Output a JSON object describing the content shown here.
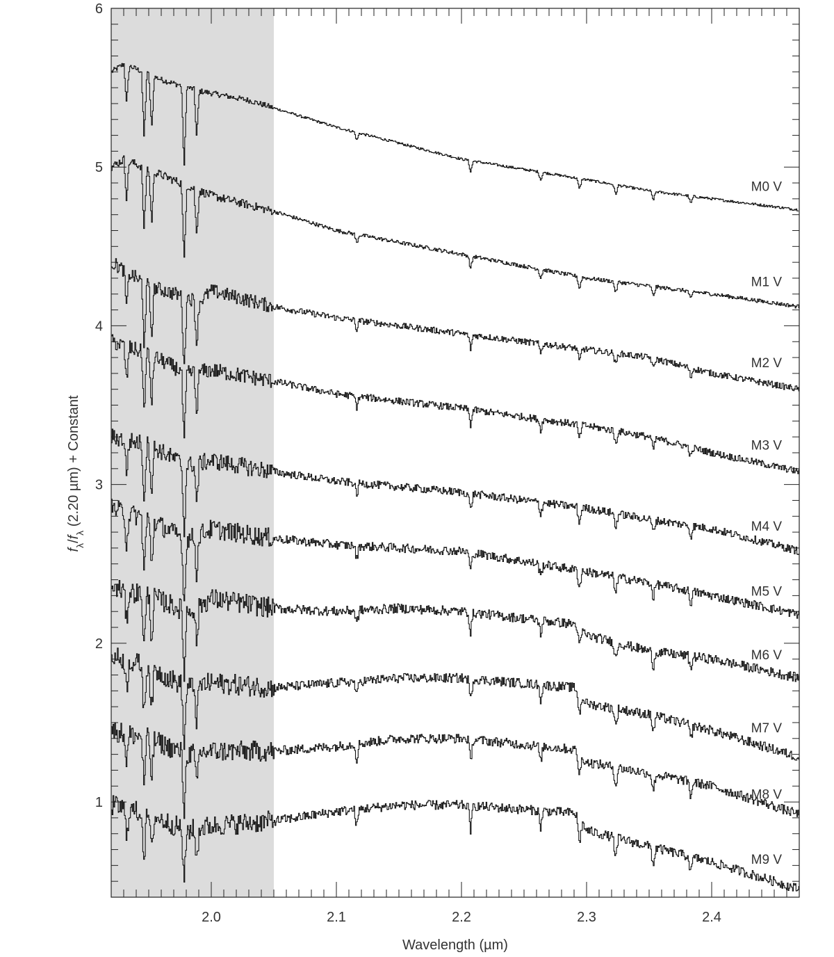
{
  "chart_data": {
    "type": "line",
    "xlabel": "Wavelength (µm)",
    "ylabel": {
      "f": "f",
      "lambda": "λ",
      "slash": "/",
      "rest": " (2.20 µm) + Constant"
    },
    "xlim": [
      1.92,
      2.47
    ],
    "ylim": [
      0.4,
      6.0
    ],
    "xticks": [
      "2.0",
      "2.1",
      "2.2",
      "2.3",
      "2.4"
    ],
    "yticks": [
      "1",
      "2",
      "3",
      "4",
      "5",
      "6"
    ],
    "shaded_region": {
      "x": [
        1.92,
        2.05
      ],
      "color": "#dcdcdc"
    },
    "line_color": "#111111",
    "grid": false,
    "series": [
      {
        "name": "M0 V",
        "label_y": 4.88,
        "anchors": [
          [
            1.92,
            5.6
          ],
          [
            1.93,
            5.65
          ],
          [
            1.96,
            5.55
          ],
          [
            1.99,
            5.48
          ],
          [
            2.03,
            5.42
          ],
          [
            2.1,
            5.25
          ],
          [
            2.2,
            5.05
          ],
          [
            2.3,
            4.92
          ],
          [
            2.35,
            4.85
          ],
          [
            2.4,
            4.8
          ],
          [
            2.47,
            4.73
          ]
        ],
        "noise": 0.008
      },
      {
        "name": "M1 V",
        "label_y": 4.28,
        "anchors": [
          [
            1.92,
            5.0
          ],
          [
            1.93,
            5.05
          ],
          [
            1.96,
            4.95
          ],
          [
            1.99,
            4.85
          ],
          [
            2.0,
            4.82
          ],
          [
            2.05,
            4.72
          ],
          [
            2.1,
            4.6
          ],
          [
            2.2,
            4.45
          ],
          [
            2.3,
            4.3
          ],
          [
            2.35,
            4.25
          ],
          [
            2.4,
            4.2
          ],
          [
            2.47,
            4.12
          ]
        ],
        "noise": 0.012
      },
      {
        "name": "M2 V",
        "label_y": 3.77,
        "anchors": [
          [
            1.92,
            4.4
          ],
          [
            1.95,
            4.25
          ],
          [
            1.98,
            4.18
          ],
          [
            1.99,
            4.15
          ],
          [
            2.0,
            4.22
          ],
          [
            2.05,
            4.12
          ],
          [
            2.1,
            4.05
          ],
          [
            2.2,
            3.95
          ],
          [
            2.3,
            3.85
          ],
          [
            2.35,
            3.8
          ],
          [
            2.4,
            3.7
          ],
          [
            2.47,
            3.6
          ]
        ],
        "noise": 0.02
      },
      {
        "name": "M3 V",
        "label_y": 3.25,
        "anchors": [
          [
            1.92,
            3.9
          ],
          [
            1.95,
            3.82
          ],
          [
            1.98,
            3.7
          ],
          [
            2.0,
            3.72
          ],
          [
            2.05,
            3.65
          ],
          [
            2.1,
            3.57
          ],
          [
            2.2,
            3.48
          ],
          [
            2.3,
            3.37
          ],
          [
            2.35,
            3.3
          ],
          [
            2.4,
            3.2
          ],
          [
            2.47,
            3.08
          ]
        ],
        "noise": 0.022
      },
      {
        "name": "M4 V",
        "label_y": 2.74,
        "anchors": [
          [
            1.92,
            3.3
          ],
          [
            1.95,
            3.25
          ],
          [
            1.98,
            3.12
          ],
          [
            2.0,
            3.15
          ],
          [
            2.05,
            3.08
          ],
          [
            2.1,
            3.02
          ],
          [
            2.2,
            2.95
          ],
          [
            2.3,
            2.85
          ],
          [
            2.35,
            2.78
          ],
          [
            2.4,
            2.72
          ],
          [
            2.47,
            2.58
          ]
        ],
        "noise": 0.025
      },
      {
        "name": "M5 V",
        "label_y": 2.33,
        "anchors": [
          [
            1.92,
            2.85
          ],
          [
            1.95,
            2.78
          ],
          [
            1.98,
            2.65
          ],
          [
            2.0,
            2.72
          ],
          [
            2.05,
            2.66
          ],
          [
            2.1,
            2.62
          ],
          [
            2.2,
            2.58
          ],
          [
            2.3,
            2.45
          ],
          [
            2.35,
            2.38
          ],
          [
            2.4,
            2.3
          ],
          [
            2.47,
            2.18
          ]
        ],
        "noise": 0.028
      },
      {
        "name": "M6 V",
        "label_y": 1.93,
        "anchors": [
          [
            1.92,
            2.35
          ],
          [
            1.95,
            2.3
          ],
          [
            1.98,
            2.2
          ],
          [
            2.0,
            2.28
          ],
          [
            2.05,
            2.22
          ],
          [
            2.1,
            2.2
          ],
          [
            2.15,
            2.22
          ],
          [
            2.2,
            2.2
          ],
          [
            2.29,
            2.12
          ],
          [
            2.3,
            2.05
          ],
          [
            2.35,
            1.95
          ],
          [
            2.4,
            1.9
          ],
          [
            2.47,
            1.78
          ]
        ],
        "noise": 0.03
      },
      {
        "name": "M7 V",
        "label_y": 1.47,
        "anchors": [
          [
            1.92,
            1.92
          ],
          [
            1.95,
            1.85
          ],
          [
            1.98,
            1.72
          ],
          [
            2.0,
            1.75
          ],
          [
            2.05,
            1.72
          ],
          [
            2.1,
            1.75
          ],
          [
            2.15,
            1.78
          ],
          [
            2.2,
            1.78
          ],
          [
            2.29,
            1.72
          ],
          [
            2.3,
            1.62
          ],
          [
            2.35,
            1.55
          ],
          [
            2.4,
            1.45
          ],
          [
            2.47,
            1.28
          ]
        ],
        "noise": 0.03
      },
      {
        "name": "M8 V",
        "label_y": 1.05,
        "anchors": [
          [
            1.92,
            1.45
          ],
          [
            1.95,
            1.4
          ],
          [
            1.98,
            1.3
          ],
          [
            2.0,
            1.32
          ],
          [
            2.05,
            1.32
          ],
          [
            2.1,
            1.35
          ],
          [
            2.15,
            1.4
          ],
          [
            2.2,
            1.4
          ],
          [
            2.29,
            1.33
          ],
          [
            2.3,
            1.25
          ],
          [
            2.35,
            1.18
          ],
          [
            2.4,
            1.1
          ],
          [
            2.47,
            0.92
          ]
        ],
        "noise": 0.03
      },
      {
        "name": "M9 V",
        "label_y": 0.64,
        "anchors": [
          [
            1.92,
            0.98
          ],
          [
            1.95,
            0.92
          ],
          [
            1.98,
            0.82
          ],
          [
            2.0,
            0.85
          ],
          [
            2.05,
            0.88
          ],
          [
            2.1,
            0.94
          ],
          [
            2.15,
            0.98
          ],
          [
            2.2,
            0.98
          ],
          [
            2.29,
            0.93
          ],
          [
            2.3,
            0.82
          ],
          [
            2.35,
            0.72
          ],
          [
            2.4,
            0.62
          ],
          [
            2.47,
            0.45
          ]
        ],
        "noise": 0.03
      }
    ],
    "absorption_features": [
      {
        "x": 1.932,
        "depth": 0.25
      },
      {
        "x": 1.946,
        "depth": 0.42
      },
      {
        "x": 1.952,
        "depth": 0.35
      },
      {
        "x": 1.978,
        "depth": 0.52
      },
      {
        "x": 1.988,
        "depth": 0.3
      },
      {
        "x": 2.116,
        "depth": 0.07
      },
      {
        "x": 2.207,
        "depth": 0.1
      },
      {
        "x": 2.263,
        "depth": 0.07
      },
      {
        "x": 2.294,
        "depth": 0.1
      },
      {
        "x": 2.323,
        "depth": 0.09
      },
      {
        "x": 2.353,
        "depth": 0.08
      },
      {
        "x": 2.383,
        "depth": 0.07
      }
    ]
  }
}
